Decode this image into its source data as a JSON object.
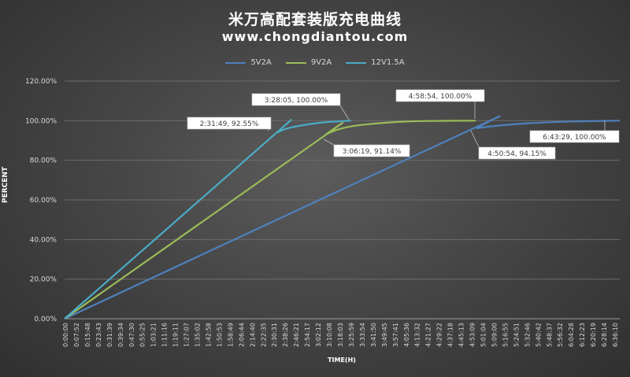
{
  "title": "米万高配套装版充电曲线",
  "subtitle": "www.chongdiantou.com",
  "legend": [
    {
      "name": "5V2A",
      "color": "#4f81bd"
    },
    {
      "name": "9V2A",
      "color": "#9bbb59"
    },
    {
      "name": "12V1.5A",
      "color": "#4bacc6"
    }
  ],
  "chart_data": {
    "type": "line",
    "title": "米万高配套装版充电曲线",
    "subtitle": "www.chongdiantou.com",
    "xlabel": "TIME(H)",
    "ylabel": "PERCENT",
    "ylim": [
      0,
      120
    ],
    "yticks": [
      "0.00%",
      "20.00%",
      "40.00%",
      "60.00%",
      "80.00%",
      "100.00%",
      "120.00%"
    ],
    "xticks": [
      "0:00:00",
      "0:07:52",
      "0:15:48",
      "0:23:43",
      "0:31:39",
      "0:39:34",
      "0:47:30",
      "0:55:25",
      "1:03:21",
      "1:11:16",
      "1:19:11",
      "1:27:07",
      "1:35:02",
      "1:42:58",
      "1:50:53",
      "1:58:49",
      "2:06:44",
      "2:14:40",
      "2:22:35",
      "2:30:31",
      "2:38:26",
      "2:46:21",
      "2:54:17",
      "3:02:12",
      "3:10:08",
      "3:18:03",
      "3:25:59",
      "3:33:54",
      "3:41:50",
      "3:49:45",
      "3:57:41",
      "4:05:36",
      "4:13:32",
      "4:21:27",
      "4:29:22",
      "4:37:18",
      "4:45:13",
      "4:53:09",
      "5:01:04",
      "5:09:00",
      "5:16:55",
      "5:24:51",
      "5:32:46",
      "5:40:42",
      "5:48:37",
      "5:56:32",
      "6:04:28",
      "6:12:23",
      "6:20:19",
      "6:28:14",
      "6:36:10"
    ],
    "xlim_minutes": [
      0,
      403.5
    ],
    "grid": true,
    "legend_position": "top",
    "series": [
      {
        "name": "5V2A",
        "color": "#4f81bd",
        "x_minutes": [
          0,
          290.9,
          300,
          320,
          340,
          370,
          403.5
        ],
        "y": [
          0,
          94.15,
          96.2,
          97.8,
          98.8,
          99.6,
          100
        ]
      },
      {
        "name": "9V2A",
        "color": "#9bbb59",
        "x_minutes": [
          0,
          186.3,
          190,
          198,
          210,
          225,
          240,
          260,
          298.9
        ],
        "y": [
          0,
          91.14,
          93,
          95.4,
          97.3,
          98.5,
          99.3,
          99.8,
          100
        ]
      },
      {
        "name": "12V1.5A",
        "color": "#4bacc6",
        "x_minutes": [
          0,
          151.8,
          155,
          162,
          172,
          185,
          198,
          208.1
        ],
        "y": [
          0,
          92.55,
          94.2,
          96.1,
          97.6,
          98.9,
          99.6,
          100
        ]
      }
    ],
    "annotations": [
      {
        "text": "2:31:49, 92.55%",
        "series": "12V1.5A"
      },
      {
        "text": "3:28:05, 100.00%",
        "series": "12V1.5A"
      },
      {
        "text": "3:06:19, 91.14%",
        "series": "9V2A"
      },
      {
        "text": "4:58:54, 100.00%",
        "series": "9V2A"
      },
      {
        "text": "4:50:54, 94.15%",
        "series": "5V2A"
      },
      {
        "text": "6:43:29, 100.00%",
        "series": "5V2A"
      }
    ]
  }
}
